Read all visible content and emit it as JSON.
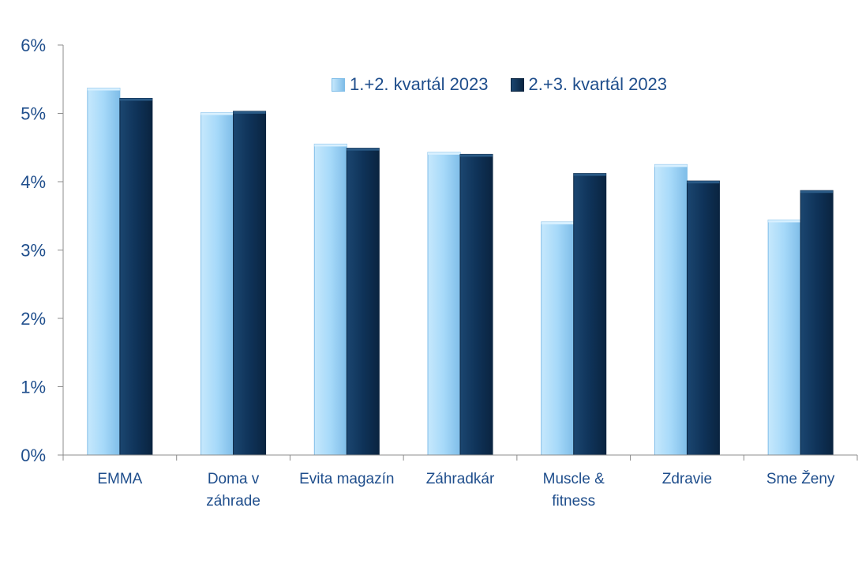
{
  "chart_data": {
    "type": "bar",
    "categories": [
      [
        "EMMA"
      ],
      [
        "Doma v",
        "záhrade"
      ],
      [
        "Evita magazín"
      ],
      [
        "Záhradkár"
      ],
      [
        "Muscle &",
        "fitness"
      ],
      [
        "Zdravie"
      ],
      [
        "Sme Ženy"
      ]
    ],
    "series": [
      {
        "name": "1.+2. kvartál 2023",
        "values": [
          5.37,
          5.01,
          4.55,
          4.43,
          3.41,
          4.25,
          3.44
        ],
        "color": "#9fd4f7"
      },
      {
        "name": "2.+3. kvartál 2023",
        "values": [
          5.22,
          5.03,
          4.49,
          4.4,
          4.12,
          4.01,
          3.87
        ],
        "color": "#0d2e52"
      }
    ],
    "ylim": [
      0,
      6
    ],
    "yticks": [
      "0%",
      "1%",
      "2%",
      "3%",
      "4%",
      "5%",
      "6%"
    ],
    "grid": false,
    "legend_position": "top-right",
    "axis_color": "#1f4e8c"
  }
}
